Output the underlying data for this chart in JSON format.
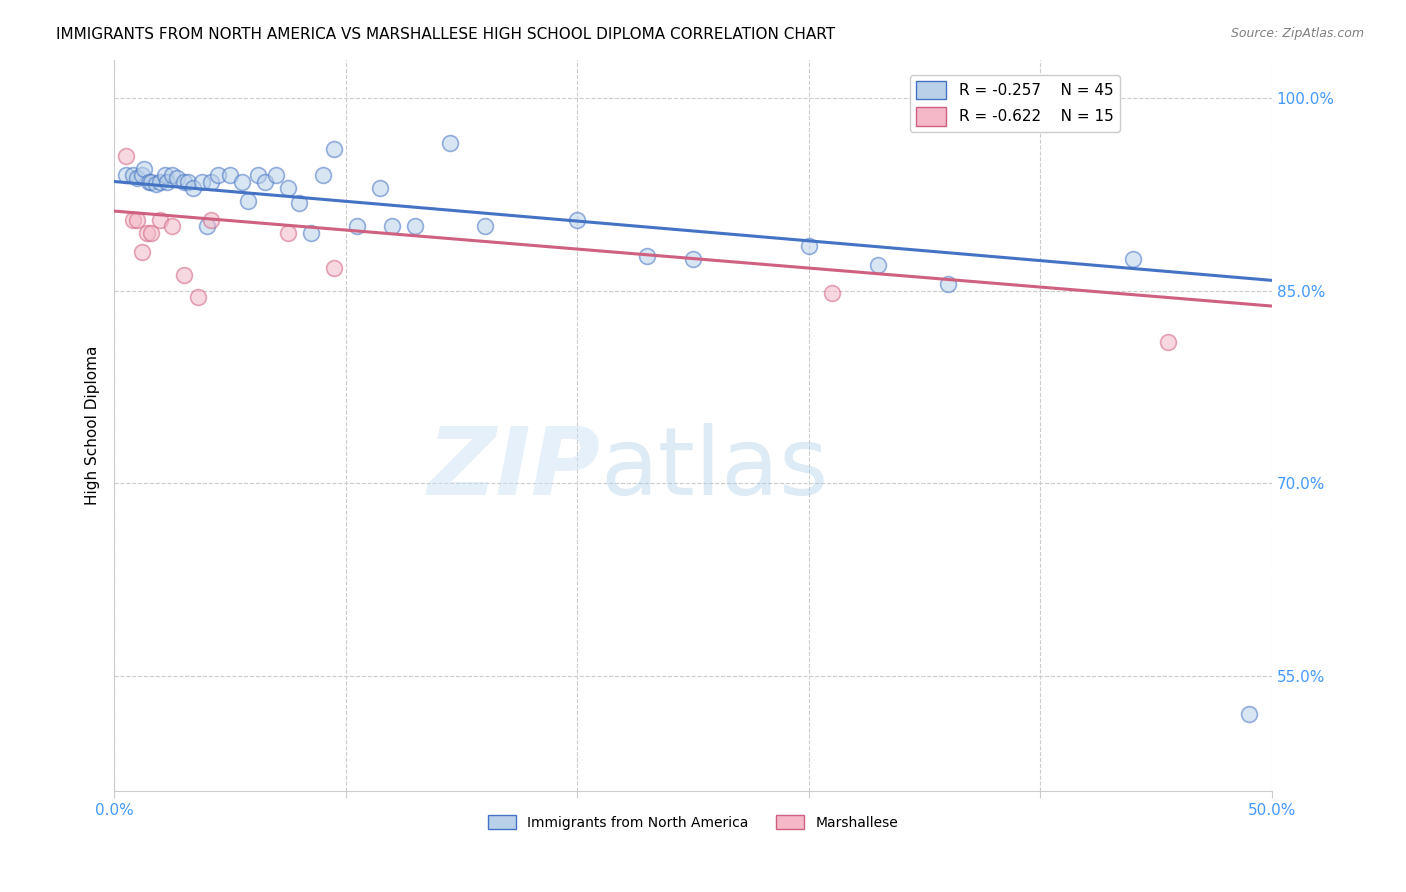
{
  "title": "IMMIGRANTS FROM NORTH AMERICA VS MARSHALLESE HIGH SCHOOL DIPLOMA CORRELATION CHART",
  "source": "Source: ZipAtlas.com",
  "ylabel": "High School Diploma",
  "xlim": [
    0.0,
    0.5
  ],
  "ylim": [
    0.46,
    1.03
  ],
  "xticks": [
    0.0,
    0.1,
    0.2,
    0.3,
    0.4,
    0.5
  ],
  "xtick_labels": [
    "0.0%",
    "",
    "",
    "",
    "",
    "50.0%"
  ],
  "ytick_labels_right": [
    "100.0%",
    "85.0%",
    "70.0%",
    "55.0%"
  ],
  "ytick_positions_right": [
    1.0,
    0.85,
    0.7,
    0.55
  ],
  "blue_scatter_x": [
    0.005,
    0.008,
    0.01,
    0.012,
    0.013,
    0.015,
    0.016,
    0.018,
    0.02,
    0.022,
    0.023,
    0.025,
    0.027,
    0.03,
    0.032,
    0.034,
    0.038,
    0.04,
    0.042,
    0.045,
    0.05,
    0.055,
    0.058,
    0.062,
    0.065,
    0.07,
    0.075,
    0.08,
    0.085,
    0.09,
    0.095,
    0.105,
    0.115,
    0.12,
    0.13,
    0.145,
    0.16,
    0.2,
    0.23,
    0.25,
    0.3,
    0.33,
    0.36,
    0.44,
    0.49
  ],
  "blue_scatter_y": [
    0.94,
    0.94,
    0.938,
    0.94,
    0.945,
    0.935,
    0.935,
    0.933,
    0.935,
    0.94,
    0.935,
    0.94,
    0.938,
    0.935,
    0.935,
    0.93,
    0.935,
    0.9,
    0.935,
    0.94,
    0.94,
    0.935,
    0.92,
    0.94,
    0.935,
    0.94,
    0.93,
    0.918,
    0.895,
    0.94,
    0.96,
    0.9,
    0.93,
    0.9,
    0.9,
    0.965,
    0.9,
    0.905,
    0.877,
    0.875,
    0.885,
    0.87,
    0.855,
    0.875,
    0.52
  ],
  "pink_scatter_x": [
    0.005,
    0.008,
    0.01,
    0.012,
    0.014,
    0.016,
    0.02,
    0.025,
    0.03,
    0.036,
    0.042,
    0.075,
    0.095,
    0.31,
    0.455
  ],
  "pink_scatter_y": [
    0.955,
    0.905,
    0.905,
    0.88,
    0.895,
    0.895,
    0.905,
    0.9,
    0.862,
    0.845,
    0.905,
    0.895,
    0.868,
    0.848,
    0.81
  ],
  "blue_R": -0.257,
  "blue_N": 45,
  "pink_R": -0.622,
  "pink_N": 15,
  "blue_color": "#b8d0e8",
  "blue_line_color": "#4472c4",
  "pink_color": "#f4b8c8",
  "pink_line_color": "#d06080",
  "scatter_size": 130,
  "scatter_alpha": 0.55,
  "watermark_zip": "ZIP",
  "watermark_atlas": "atlas",
  "grid_color": "#cccccc",
  "title_fontsize": 11,
  "axis_color": "#4499ff",
  "legend_fontsize": 11,
  "blue_line_x": [
    0.0,
    0.5
  ],
  "blue_line_y": [
    0.935,
    0.858
  ],
  "pink_line_x": [
    0.0,
    0.5
  ],
  "pink_line_y": [
    0.912,
    0.838
  ]
}
